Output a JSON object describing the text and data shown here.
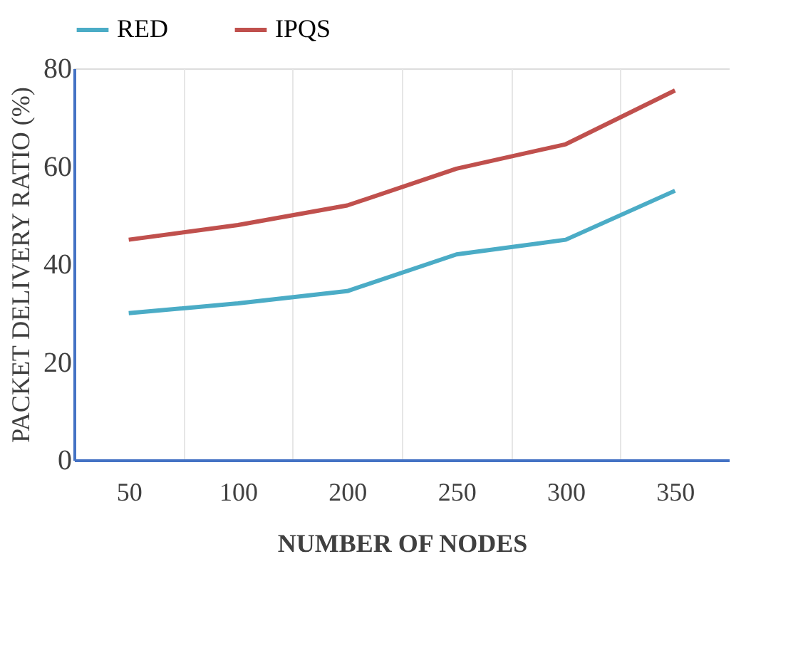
{
  "chart_data": {
    "type": "line",
    "xlabel": "NUMBER OF NODES",
    "ylabel": "PACKET DELIVERY RATIO (%)",
    "categories": [
      "50",
      "100",
      "200",
      "250",
      "300",
      "350"
    ],
    "series": [
      {
        "name": "RED",
        "color": "#4bacc6",
        "values": [
          30,
          32,
          34.5,
          42,
          45,
          55
        ]
      },
      {
        "name": "IPQS",
        "color": "#c0504d",
        "values": [
          45,
          48,
          52,
          59.5,
          64.5,
          75.5
        ]
      }
    ],
    "ylim": [
      0,
      80
    ],
    "yticks": [
      0,
      20,
      40,
      60,
      80
    ],
    "grid": "x",
    "legend": "top",
    "marker": "none",
    "line_style": "solid"
  }
}
